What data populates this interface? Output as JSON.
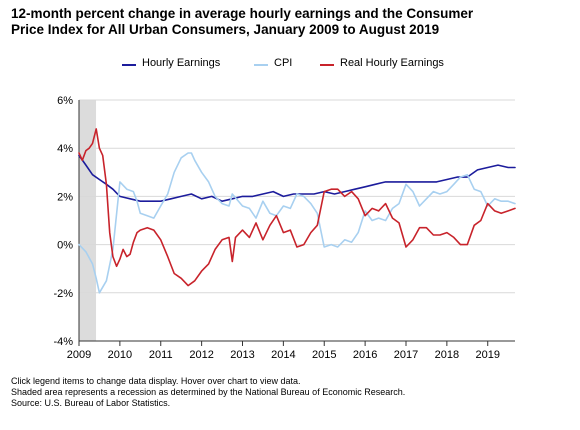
{
  "title_line1": "12-month percent change in average hourly earnings and the Consumer",
  "title_line2": "Price Index for All Urban Consumers, January 2009 to August 2019",
  "notes": [
    "Click legend items to change data display. Hover over chart to view data.",
    "Shaded area represents a recession as determined by the National Bureau of Economic Research.",
    "Source: U.S. Bureau of Labor Statistics."
  ],
  "chart_data": {
    "type": "line",
    "ylim": [
      -4,
      6
    ],
    "yticks": [
      -4,
      -2,
      0,
      2,
      4,
      6
    ],
    "ytick_labels": [
      "-4%",
      "-2%",
      "0%",
      "2%",
      "4%",
      "6%"
    ],
    "xlim": [
      2009.0,
      2019.667
    ],
    "xticks": [
      2009,
      2010,
      2011,
      2012,
      2013,
      2014,
      2015,
      2016,
      2017,
      2018,
      2019
    ],
    "xtick_labels": [
      "2009",
      "2010",
      "2011",
      "2012",
      "2013",
      "2014",
      "2015",
      "2016",
      "2017",
      "2018",
      "2019"
    ],
    "grid": "horizontal",
    "legend_position": "top",
    "recession": {
      "start": 2009.0,
      "end": 2009.417
    },
    "series": [
      {
        "name": "Hourly Earnings",
        "color": "#1c1c9c",
        "points": [
          [
            2009.0,
            3.7
          ],
          [
            2009.17,
            3.3
          ],
          [
            2009.33,
            2.9
          ],
          [
            2009.5,
            2.7
          ],
          [
            2009.67,
            2.5
          ],
          [
            2009.83,
            2.3
          ],
          [
            2010.0,
            2.0
          ],
          [
            2010.25,
            1.9
          ],
          [
            2010.5,
            1.8
          ],
          [
            2010.75,
            1.8
          ],
          [
            2011.0,
            1.8
          ],
          [
            2011.25,
            1.9
          ],
          [
            2011.5,
            2.0
          ],
          [
            2011.75,
            2.1
          ],
          [
            2012.0,
            1.9
          ],
          [
            2012.25,
            2.0
          ],
          [
            2012.5,
            1.8
          ],
          [
            2012.75,
            1.9
          ],
          [
            2013.0,
            2.0
          ],
          [
            2013.25,
            2.0
          ],
          [
            2013.5,
            2.1
          ],
          [
            2013.75,
            2.2
          ],
          [
            2014.0,
            2.0
          ],
          [
            2014.25,
            2.1
          ],
          [
            2014.5,
            2.1
          ],
          [
            2014.75,
            2.1
          ],
          [
            2015.0,
            2.2
          ],
          [
            2015.25,
            2.1
          ],
          [
            2015.5,
            2.2
          ],
          [
            2015.75,
            2.3
          ],
          [
            2016.0,
            2.4
          ],
          [
            2016.25,
            2.5
          ],
          [
            2016.5,
            2.6
          ],
          [
            2016.75,
            2.6
          ],
          [
            2017.0,
            2.6
          ],
          [
            2017.25,
            2.6
          ],
          [
            2017.5,
            2.6
          ],
          [
            2017.75,
            2.6
          ],
          [
            2018.0,
            2.7
          ],
          [
            2018.25,
            2.8
          ],
          [
            2018.5,
            2.8
          ],
          [
            2018.75,
            3.1
          ],
          [
            2019.0,
            3.2
          ],
          [
            2019.25,
            3.3
          ],
          [
            2019.5,
            3.2
          ],
          [
            2019.667,
            3.2
          ]
        ]
      },
      {
        "name": "CPI",
        "color": "#a8d0f0",
        "points": [
          [
            2009.0,
            0.0
          ],
          [
            2009.17,
            -0.3
          ],
          [
            2009.33,
            -0.8
          ],
          [
            2009.42,
            -1.4
          ],
          [
            2009.5,
            -2.0
          ],
          [
            2009.67,
            -1.5
          ],
          [
            2009.83,
            -0.2
          ],
          [
            2010.0,
            2.6
          ],
          [
            2010.17,
            2.3
          ],
          [
            2010.33,
            2.2
          ],
          [
            2010.42,
            1.8
          ],
          [
            2010.5,
            1.3
          ],
          [
            2010.67,
            1.2
          ],
          [
            2010.83,
            1.1
          ],
          [
            2011.0,
            1.6
          ],
          [
            2011.17,
            2.1
          ],
          [
            2011.33,
            3.0
          ],
          [
            2011.5,
            3.6
          ],
          [
            2011.67,
            3.8
          ],
          [
            2011.75,
            3.8
          ],
          [
            2011.83,
            3.5
          ],
          [
            2012.0,
            3.0
          ],
          [
            2012.17,
            2.6
          ],
          [
            2012.33,
            2.0
          ],
          [
            2012.5,
            1.7
          ],
          [
            2012.67,
            1.6
          ],
          [
            2012.75,
            2.1
          ],
          [
            2013.0,
            1.6
          ],
          [
            2013.17,
            1.5
          ],
          [
            2013.33,
            1.1
          ],
          [
            2013.5,
            1.8
          ],
          [
            2013.67,
            1.3
          ],
          [
            2013.83,
            1.2
          ],
          [
            2014.0,
            1.6
          ],
          [
            2014.17,
            1.5
          ],
          [
            2014.33,
            2.1
          ],
          [
            2014.5,
            2.0
          ],
          [
            2014.67,
            1.7
          ],
          [
            2014.83,
            1.3
          ],
          [
            2015.0,
            -0.1
          ],
          [
            2015.17,
            0.0
          ],
          [
            2015.33,
            -0.1
          ],
          [
            2015.5,
            0.2
          ],
          [
            2015.67,
            0.1
          ],
          [
            2015.83,
            0.5
          ],
          [
            2016.0,
            1.4
          ],
          [
            2016.17,
            1.0
          ],
          [
            2016.33,
            1.1
          ],
          [
            2016.5,
            1.0
          ],
          [
            2016.67,
            1.5
          ],
          [
            2016.83,
            1.7
          ],
          [
            2017.0,
            2.5
          ],
          [
            2017.17,
            2.2
          ],
          [
            2017.33,
            1.6
          ],
          [
            2017.5,
            1.9
          ],
          [
            2017.67,
            2.2
          ],
          [
            2017.83,
            2.1
          ],
          [
            2018.0,
            2.2
          ],
          [
            2018.17,
            2.5
          ],
          [
            2018.33,
            2.8
          ],
          [
            2018.5,
            2.9
          ],
          [
            2018.67,
            2.3
          ],
          [
            2018.83,
            2.2
          ],
          [
            2019.0,
            1.6
          ],
          [
            2019.17,
            1.9
          ],
          [
            2019.33,
            1.8
          ],
          [
            2019.5,
            1.8
          ],
          [
            2019.667,
            1.7
          ]
        ]
      },
      {
        "name": "Real Hourly Earnings",
        "color": "#c8232b",
        "points": [
          [
            2009.0,
            3.8
          ],
          [
            2009.08,
            3.5
          ],
          [
            2009.17,
            3.9
          ],
          [
            2009.25,
            4.0
          ],
          [
            2009.33,
            4.2
          ],
          [
            2009.42,
            4.8
          ],
          [
            2009.5,
            4.0
          ],
          [
            2009.58,
            3.7
          ],
          [
            2009.67,
            2.5
          ],
          [
            2009.75,
            0.5
          ],
          [
            2009.83,
            -0.5
          ],
          [
            2009.92,
            -0.9
          ],
          [
            2010.0,
            -0.6
          ],
          [
            2010.08,
            -0.2
          ],
          [
            2010.17,
            -0.5
          ],
          [
            2010.25,
            -0.4
          ],
          [
            2010.33,
            0.1
          ],
          [
            2010.42,
            0.5
          ],
          [
            2010.5,
            0.6
          ],
          [
            2010.67,
            0.7
          ],
          [
            2010.83,
            0.6
          ],
          [
            2011.0,
            0.2
          ],
          [
            2011.17,
            -0.5
          ],
          [
            2011.33,
            -1.2
          ],
          [
            2011.5,
            -1.4
          ],
          [
            2011.67,
            -1.7
          ],
          [
            2011.83,
            -1.5
          ],
          [
            2012.0,
            -1.1
          ],
          [
            2012.17,
            -0.8
          ],
          [
            2012.33,
            -0.2
          ],
          [
            2012.5,
            0.2
          ],
          [
            2012.67,
            0.3
          ],
          [
            2012.75,
            -0.7
          ],
          [
            2012.83,
            0.3
          ],
          [
            2013.0,
            0.6
          ],
          [
            2013.17,
            0.3
          ],
          [
            2013.33,
            0.9
          ],
          [
            2013.5,
            0.2
          ],
          [
            2013.67,
            0.8
          ],
          [
            2013.83,
            1.2
          ],
          [
            2014.0,
            0.5
          ],
          [
            2014.17,
            0.6
          ],
          [
            2014.33,
            -0.1
          ],
          [
            2014.5,
            0.0
          ],
          [
            2014.67,
            0.5
          ],
          [
            2014.83,
            0.8
          ],
          [
            2015.0,
            2.2
          ],
          [
            2015.17,
            2.3
          ],
          [
            2015.33,
            2.3
          ],
          [
            2015.5,
            2.0
          ],
          [
            2015.67,
            2.2
          ],
          [
            2015.83,
            1.9
          ],
          [
            2016.0,
            1.2
          ],
          [
            2016.17,
            1.5
          ],
          [
            2016.33,
            1.4
          ],
          [
            2016.5,
            1.7
          ],
          [
            2016.67,
            1.1
          ],
          [
            2016.83,
            0.9
          ],
          [
            2017.0,
            -0.1
          ],
          [
            2017.17,
            0.2
          ],
          [
            2017.33,
            0.7
          ],
          [
            2017.5,
            0.7
          ],
          [
            2017.67,
            0.4
          ],
          [
            2017.83,
            0.4
          ],
          [
            2018.0,
            0.5
          ],
          [
            2018.17,
            0.3
          ],
          [
            2018.33,
            0.0
          ],
          [
            2018.5,
            0.0
          ],
          [
            2018.67,
            0.8
          ],
          [
            2018.83,
            1.0
          ],
          [
            2019.0,
            1.7
          ],
          [
            2019.17,
            1.4
          ],
          [
            2019.33,
            1.3
          ],
          [
            2019.5,
            1.4
          ],
          [
            2019.667,
            1.5
          ]
        ]
      }
    ]
  }
}
